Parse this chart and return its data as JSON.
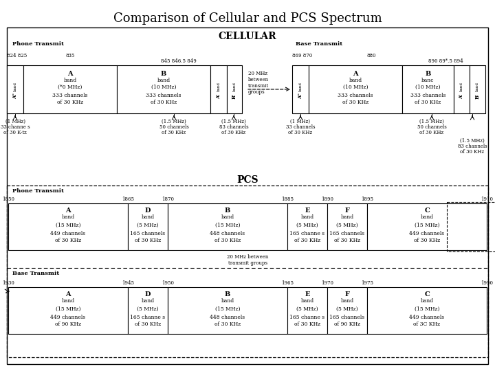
{
  "title": "Comparison of Cellular and PCS Spectrum",
  "bg_color": "#ffffff",
  "cellular_label": "CELLULAR",
  "pcs_label": "PCS",
  "cellular_phone_label": "Phone Transmit",
  "cellular_base_label": "Base Transmit",
  "pcs_phone_label": "Phone Transmit",
  "pcs_base_label": "Base Transmit",
  "cell_gap_text": "20 MHz\nbetween\ntransmit\ngroups",
  "pcs_gap_text": "20 MHz between\ntransmit groups",
  "pcs_phone_band_names": [
    "A",
    "D",
    "B",
    "E",
    "F",
    "C"
  ],
  "pcs_phone_band_mhz": [
    15,
    5,
    15,
    5,
    5,
    15
  ],
  "pcs_phone_band_ch_mhz": [
    "15",
    "5",
    "15",
    "5",
    "5",
    "15"
  ],
  "pcs_phone_band_channels": [
    "449 channels\nof 30 KHz",
    "165 channels\nof 30 KHz",
    "448 channels\nof 30 KHz",
    "165 channe s\nof 30 KHz",
    "165 channels\nof 30 KHz",
    "449 channels\nof 30 KHz"
  ],
  "pcs_phone_freqs": [
    "1850",
    "1865",
    "1870",
    "1885",
    "1890",
    "1895",
    "1910"
  ],
  "pcs_base_band_names": [
    "A",
    "D",
    "B",
    "E",
    "F",
    "C"
  ],
  "pcs_base_band_mhz": [
    15,
    5,
    15,
    5,
    5,
    15
  ],
  "pcs_base_band_ch_mhz": [
    "15",
    "5",
    "15",
    "5",
    "5",
    "15"
  ],
  "pcs_base_band_channels": [
    "449 channels\nof 90 KHz",
    "165 channe s\nof 30 KHz",
    "448 channels\nof 30 KHz",
    "165 channe s\nof 30 KHz",
    "165 channels\nof 90 KHz",
    "449 channels\nof 3C KHz"
  ],
  "pcs_base_freqs": [
    "1930",
    "1945",
    "1950",
    "1965",
    "1970",
    "1975",
    "1990"
  ]
}
